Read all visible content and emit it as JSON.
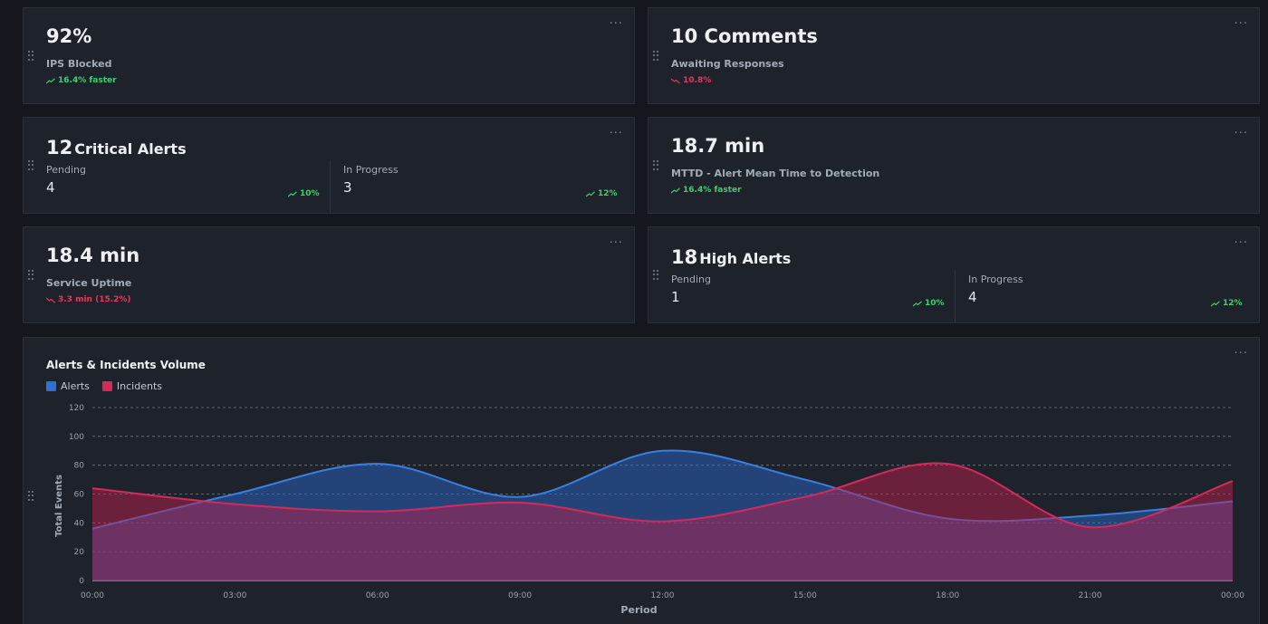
{
  "ips_card": {
    "value": "92%",
    "label": "IPS Blocked",
    "trend": "16.4% faster",
    "trend_dir": "up"
  },
  "comments_card": {
    "value": "10 Comments",
    "label": "Awaiting Responses",
    "trend": "10.8%",
    "trend_dir": "down"
  },
  "critical_card": {
    "count": "12",
    "title": "Critical Alerts",
    "pending_label": "Pending",
    "pending_value": "4",
    "pending_trend": "10%",
    "progress_label": "In Progress",
    "progress_value": "3",
    "progress_trend": "12%"
  },
  "mttd_card": {
    "value": "18.7 min",
    "label": "MTTD - Alert Mean Time to Detection",
    "trend": "16.4% faster",
    "trend_dir": "up"
  },
  "uptime_card": {
    "value": "18.4 min",
    "label": "Service Uptime",
    "trend": "3.3 min (15.2%)",
    "trend_dir": "down"
  },
  "high_card": {
    "count": "18",
    "title": "High Alerts",
    "pending_label": "Pending",
    "pending_value": "1",
    "pending_trend": "10%",
    "progress_label": "In Progress",
    "progress_value": "4",
    "progress_trend": "12%"
  },
  "menu_icon": "...",
  "colors": {
    "up": "#3ecf6e",
    "down": "#e8365b",
    "alerts": "#2f6fd6",
    "incidents": "#d8285a"
  },
  "chart_data": {
    "type": "area",
    "title": "Alerts & Incidents Volume",
    "xlabel": "Period",
    "ylabel": "Total Events",
    "ylim": [
      0,
      120
    ],
    "yticks": [
      "0",
      "20",
      "40",
      "60",
      "80",
      "100",
      "120"
    ],
    "categories": [
      "00:00",
      "03:00",
      "06:00",
      "09:00",
      "12:00",
      "15:00",
      "18:00",
      "21:00",
      "00:00"
    ],
    "grid": true,
    "legend_position": "top-left",
    "series": [
      {
        "name": "Alerts",
        "color": "#2f6fd6",
        "values": [
          36,
          60,
          81,
          58,
          90,
          70,
          43,
          45,
          55
        ]
      },
      {
        "name": "Incidents",
        "color": "#d8285a",
        "values": [
          64,
          53,
          48,
          54,
          41,
          58,
          81,
          37,
          69
        ]
      }
    ]
  }
}
